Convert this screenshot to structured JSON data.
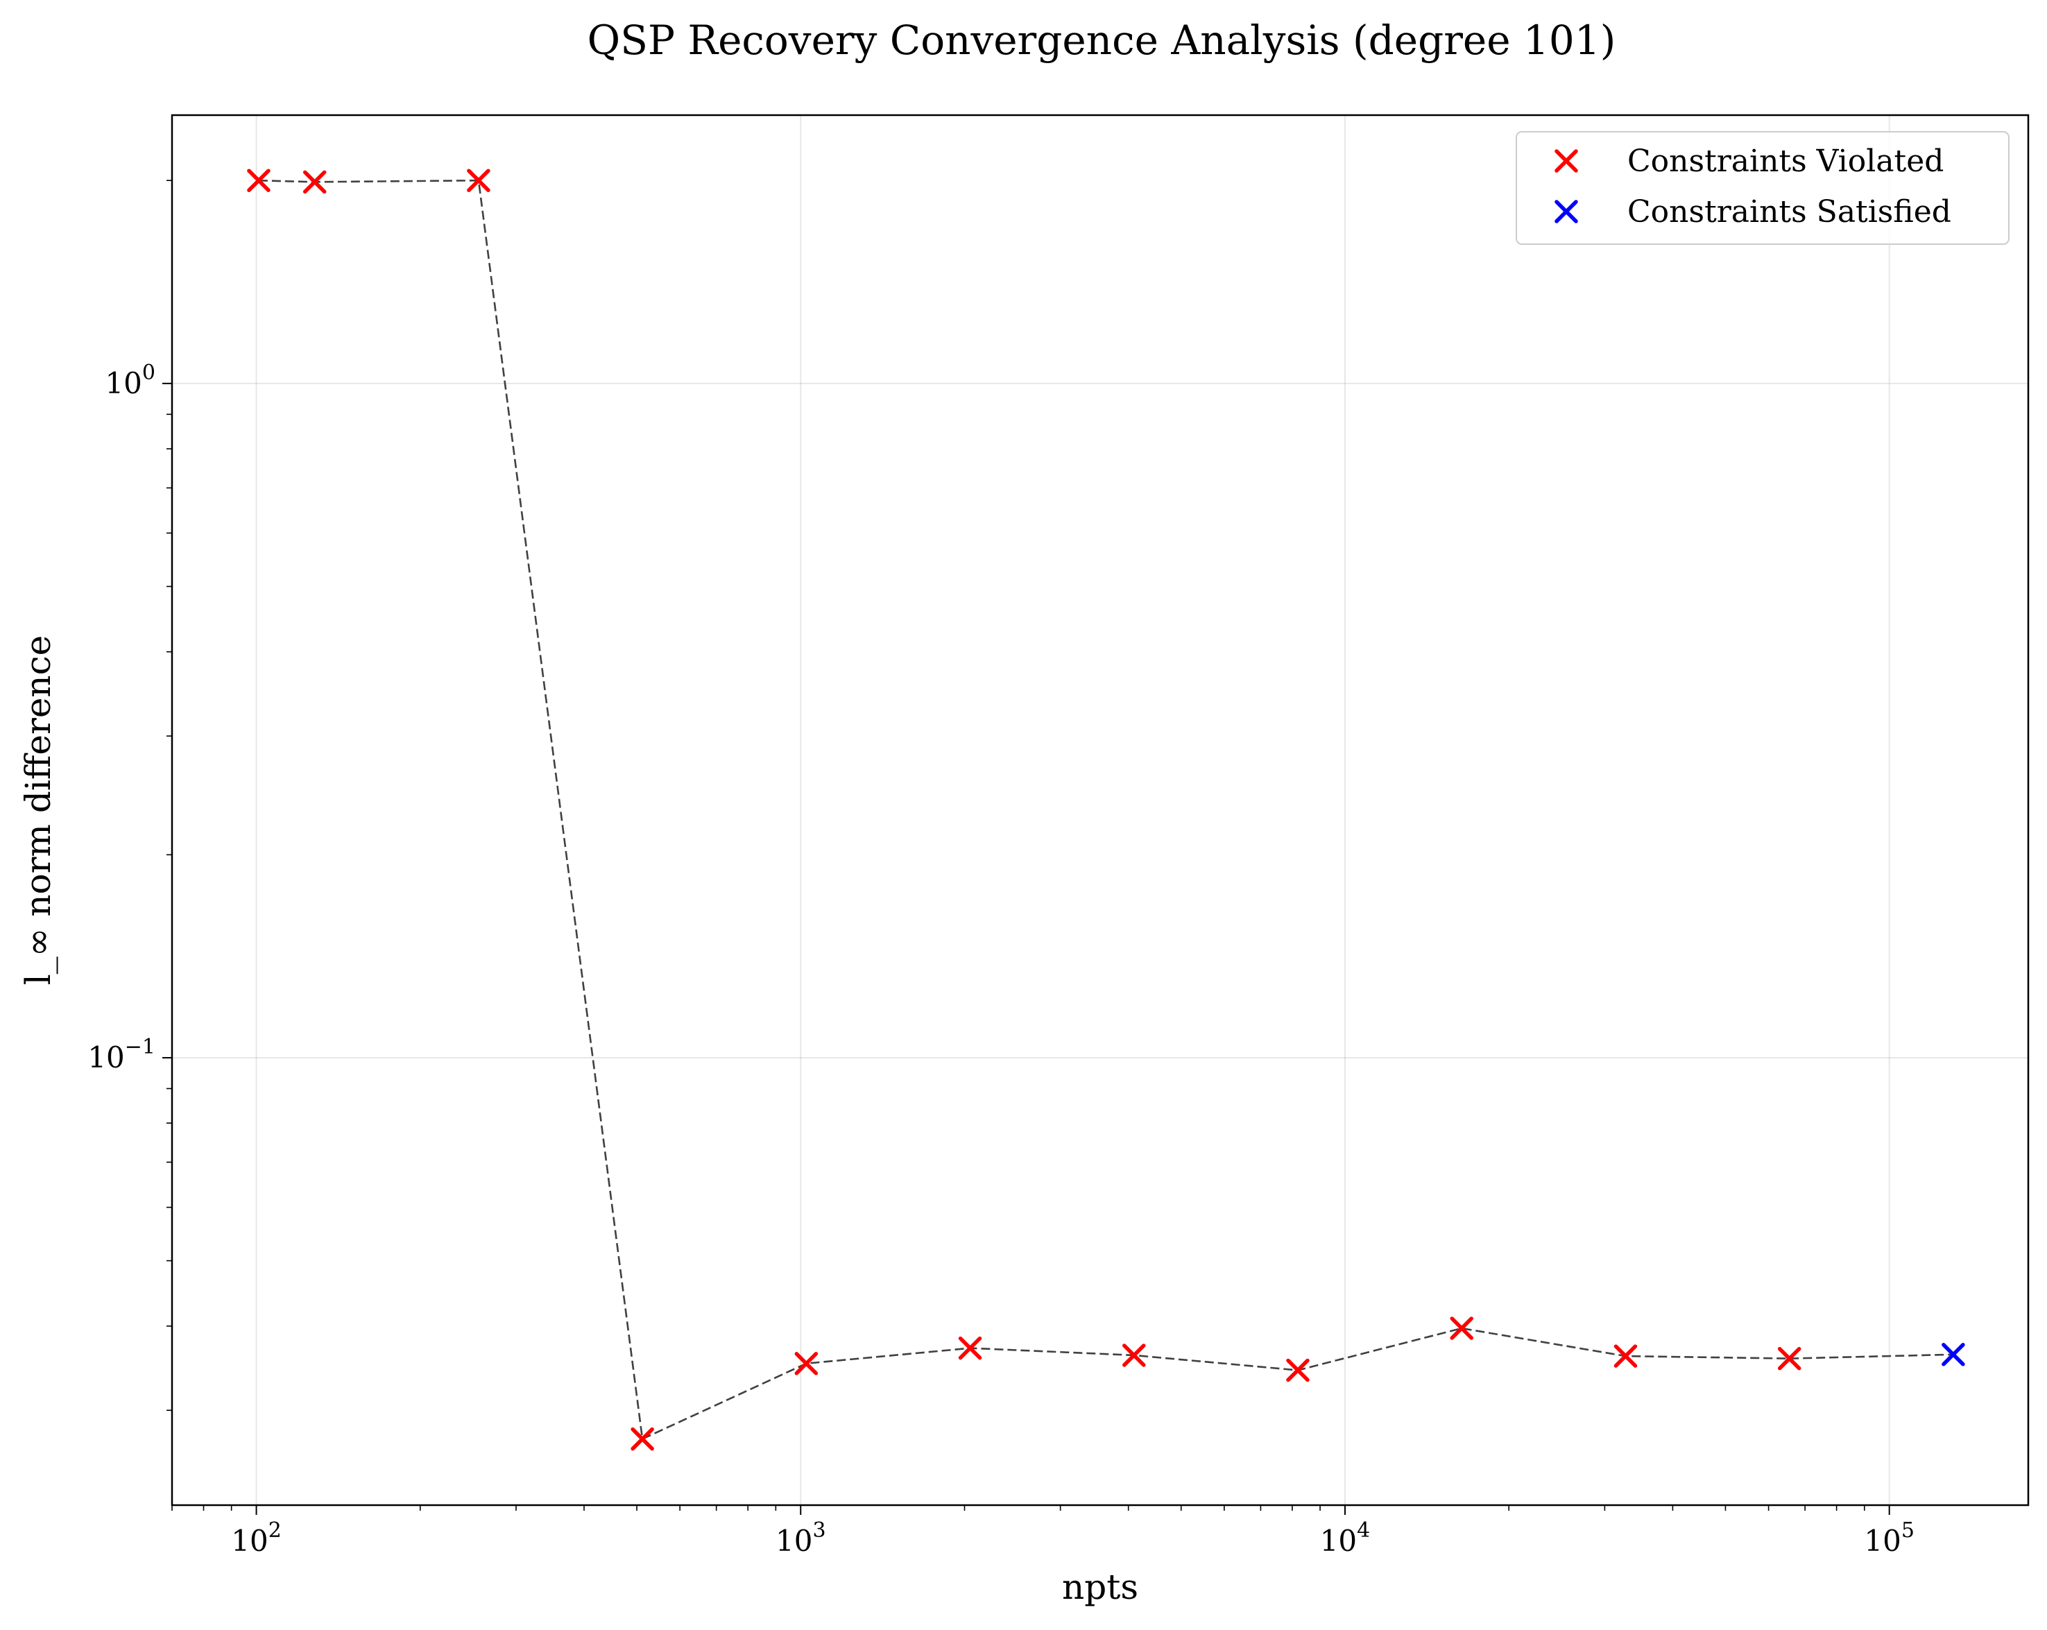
{
  "chart_data": {
    "type": "line",
    "title": "QSP Recovery Convergence Analysis (degree 101)",
    "xlabel": "npts",
    "ylabel": "l_∞ norm difference",
    "xscale": "log",
    "yscale": "log",
    "xlim": [
      70,
      180000
    ],
    "ylim": [
      0.0217,
      2.5
    ],
    "grid": true,
    "legend_position": "top-right",
    "x_ticks": [
      {
        "value": 100,
        "base": "10",
        "exp": "2"
      },
      {
        "value": 1000,
        "base": "10",
        "exp": "3"
      },
      {
        "value": 10000,
        "base": "10",
        "exp": "4"
      },
      {
        "value": 100000,
        "base": "10",
        "exp": "5"
      }
    ],
    "y_ticks": [
      {
        "value": 1,
        "base": "10",
        "exp": "0"
      },
      {
        "value": 0.1,
        "base": "10",
        "exp": "−1"
      }
    ],
    "line_color": "#404040",
    "points": [
      {
        "x": 101,
        "y": 2.0,
        "status": "violated"
      },
      {
        "x": 128,
        "y": 1.99,
        "status": "violated"
      },
      {
        "x": 256,
        "y": 2.0,
        "status": "violated"
      },
      {
        "x": 512,
        "y": 0.0272,
        "status": "violated"
      },
      {
        "x": 1024,
        "y": 0.0352,
        "status": "violated"
      },
      {
        "x": 2048,
        "y": 0.0371,
        "status": "violated"
      },
      {
        "x": 4096,
        "y": 0.0362,
        "status": "violated"
      },
      {
        "x": 8192,
        "y": 0.0344,
        "status": "violated"
      },
      {
        "x": 16384,
        "y": 0.0397,
        "status": "violated"
      },
      {
        "x": 32768,
        "y": 0.0361,
        "status": "violated"
      },
      {
        "x": 65536,
        "y": 0.0358,
        "status": "violated"
      },
      {
        "x": 131072,
        "y": 0.0363,
        "status": "satisfied"
      }
    ],
    "legend": [
      {
        "label": "Constraints Violated",
        "status": "violated",
        "color": "#ff0000"
      },
      {
        "label": "Constraints Satisfied",
        "status": "satisfied",
        "color": "#0000ff"
      }
    ]
  }
}
